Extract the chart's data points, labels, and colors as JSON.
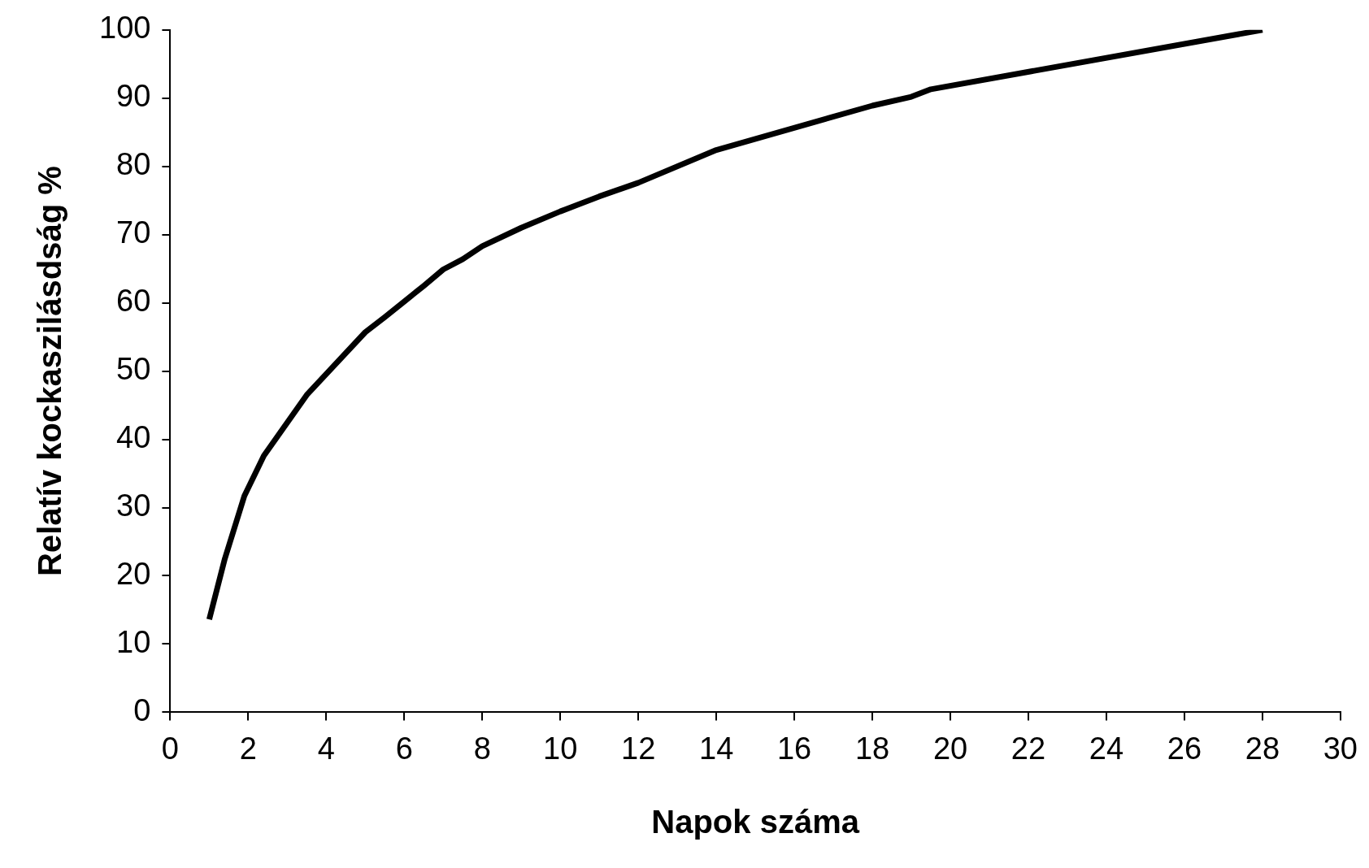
{
  "chart_data": {
    "type": "line",
    "xlabel": "Napok száma",
    "ylabel": "Relatív kockaszilásdság %",
    "series": [
      {
        "color": "#000000",
        "x": [
          1,
          1.4,
          1.9,
          2.4,
          3.5,
          5,
          5.5,
          6,
          6.5,
          7,
          7.5,
          8,
          9,
          10,
          11,
          12,
          14,
          18,
          19,
          19.5,
          28
        ],
        "values": [
          13.6,
          22.5,
          31.7,
          37.6,
          46.5,
          55.7,
          57.9,
          60.2,
          62.5,
          64.9,
          66.4,
          68.3,
          71,
          73.4,
          75.6,
          77.6,
          82.4,
          88.9,
          90.2,
          91.3,
          100
        ]
      }
    ],
    "xlim": [
      0,
      30
    ],
    "xticks": [
      0,
      2,
      4,
      6,
      8,
      10,
      12,
      14,
      16,
      18,
      20,
      22,
      24,
      26,
      28,
      30
    ],
    "ylim": [
      0,
      100
    ],
    "yticks": [
      0,
      10,
      20,
      30,
      40,
      50,
      60,
      70,
      80,
      90,
      100
    ],
    "grid": false,
    "legend": false,
    "marker": "none",
    "line_style": "solid"
  }
}
